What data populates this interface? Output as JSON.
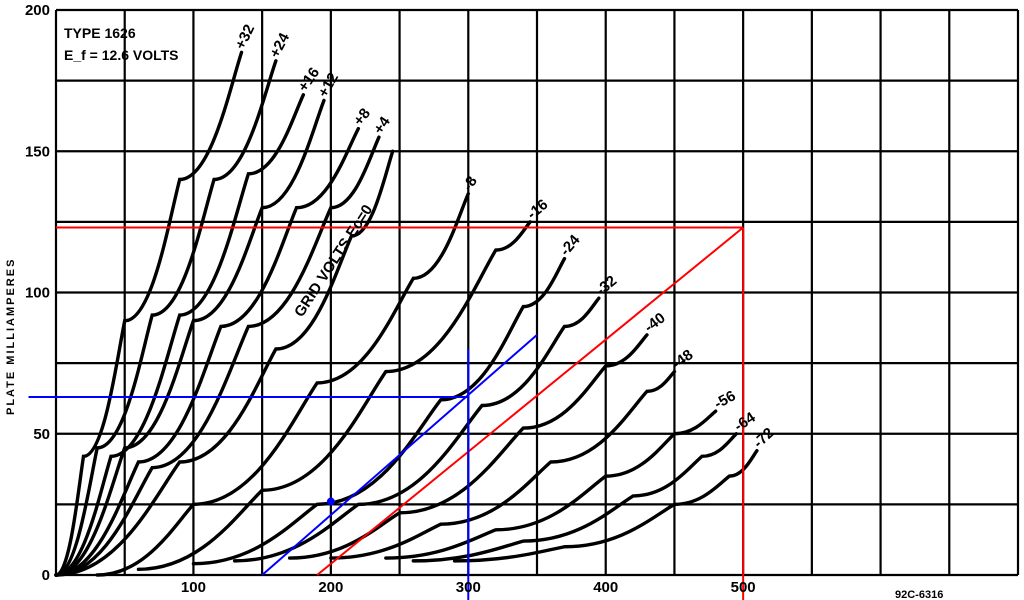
{
  "chart_data": {
    "type": "line",
    "title": "TYPE 1626",
    "subtitle": "E_f = 12.6 VOLTS",
    "ylabel": "PLATE MILLIAMPERES",
    "grid_label": "GRID VOLTS Ec=0",
    "footer": "92C-6316",
    "xlim": [
      0,
      700
    ],
    "ylim": [
      0,
      200
    ],
    "grid": true,
    "x_ticks": [
      "100",
      "200",
      "300",
      "400",
      "500"
    ],
    "y_ticks": [
      "0",
      "50",
      "100",
      "150",
      "200"
    ],
    "series": [
      {
        "name": "+32",
        "points": [
          [
            0,
            0
          ],
          [
            20,
            42
          ],
          [
            50,
            90
          ],
          [
            90,
            140
          ],
          [
            135,
            185
          ]
        ]
      },
      {
        "name": "+24",
        "points": [
          [
            0,
            0
          ],
          [
            30,
            45
          ],
          [
            70,
            92
          ],
          [
            115,
            140
          ],
          [
            160,
            182
          ]
        ]
      },
      {
        "name": "+16",
        "points": [
          [
            0,
            0
          ],
          [
            40,
            42
          ],
          [
            90,
            92
          ],
          [
            140,
            142
          ],
          [
            180,
            170
          ]
        ]
      },
      {
        "name": "+12",
        "points": [
          [
            0,
            0
          ],
          [
            50,
            45
          ],
          [
            100,
            90
          ],
          [
            150,
            130
          ],
          [
            195,
            168
          ]
        ]
      },
      {
        "name": "+8",
        "points": [
          [
            0,
            0
          ],
          [
            60,
            40
          ],
          [
            120,
            88
          ],
          [
            175,
            130
          ],
          [
            220,
            158
          ]
        ]
      },
      {
        "name": "+4",
        "points": [
          [
            0,
            0
          ],
          [
            70,
            38
          ],
          [
            140,
            88
          ],
          [
            200,
            130
          ],
          [
            235,
            155
          ]
        ]
      },
      {
        "name": "0",
        "points": [
          [
            0,
            0
          ],
          [
            90,
            40
          ],
          [
            160,
            80
          ],
          [
            215,
            120
          ],
          [
            245,
            150
          ]
        ]
      },
      {
        "name": "-8",
        "points": [
          [
            30,
            0
          ],
          [
            100,
            25
          ],
          [
            190,
            68
          ],
          [
            260,
            105
          ],
          [
            300,
            135
          ]
        ]
      },
      {
        "name": "-16",
        "points": [
          [
            60,
            2
          ],
          [
            150,
            30
          ],
          [
            240,
            72
          ],
          [
            320,
            115
          ],
          [
            345,
            125
          ]
        ]
      },
      {
        "name": "-24",
        "points": [
          [
            100,
            4
          ],
          [
            190,
            25
          ],
          [
            280,
            62
          ],
          [
            340,
            95
          ],
          [
            370,
            112
          ]
        ]
      },
      {
        "name": "-32",
        "points": [
          [
            130,
            5
          ],
          [
            220,
            25
          ],
          [
            310,
            60
          ],
          [
            370,
            88
          ],
          [
            395,
            98
          ]
        ]
      },
      {
        "name": "-40",
        "points": [
          [
            170,
            6
          ],
          [
            250,
            22
          ],
          [
            340,
            52
          ],
          [
            400,
            74
          ],
          [
            430,
            85
          ]
        ]
      },
      {
        "name": "-48",
        "points": [
          [
            200,
            6
          ],
          [
            280,
            18
          ],
          [
            360,
            40
          ],
          [
            430,
            65
          ],
          [
            450,
            72
          ]
        ]
      },
      {
        "name": "-56",
        "points": [
          [
            240,
            6
          ],
          [
            320,
            16
          ],
          [
            400,
            35
          ],
          [
            450,
            50
          ],
          [
            480,
            58
          ]
        ]
      },
      {
        "name": "-64",
        "points": [
          [
            260,
            5
          ],
          [
            340,
            12
          ],
          [
            420,
            28
          ],
          [
            470,
            42
          ],
          [
            495,
            50
          ]
        ]
      },
      {
        "name": "-72",
        "points": [
          [
            290,
            5
          ],
          [
            370,
            10
          ],
          [
            450,
            25
          ],
          [
            490,
            35
          ],
          [
            510,
            44
          ]
        ]
      }
    ],
    "overlays": [
      {
        "color": "#ff0000",
        "lines": [
          [
            [
              0,
              123
            ],
            [
              500,
              123
            ]
          ],
          [
            [
              500,
              123
            ],
            [
              500,
              -10
            ]
          ],
          [
            [
              190,
              0
            ],
            [
              500,
              123
            ]
          ]
        ]
      },
      {
        "color": "#0000ff",
        "lines": [
          [
            [
              150,
              0
            ],
            [
              350,
              85
            ]
          ],
          [
            [
              -20,
              63
            ],
            [
              300,
              63
            ]
          ],
          [
            [
              300,
              80
            ],
            [
              300,
              -10
            ]
          ]
        ]
      }
    ]
  }
}
